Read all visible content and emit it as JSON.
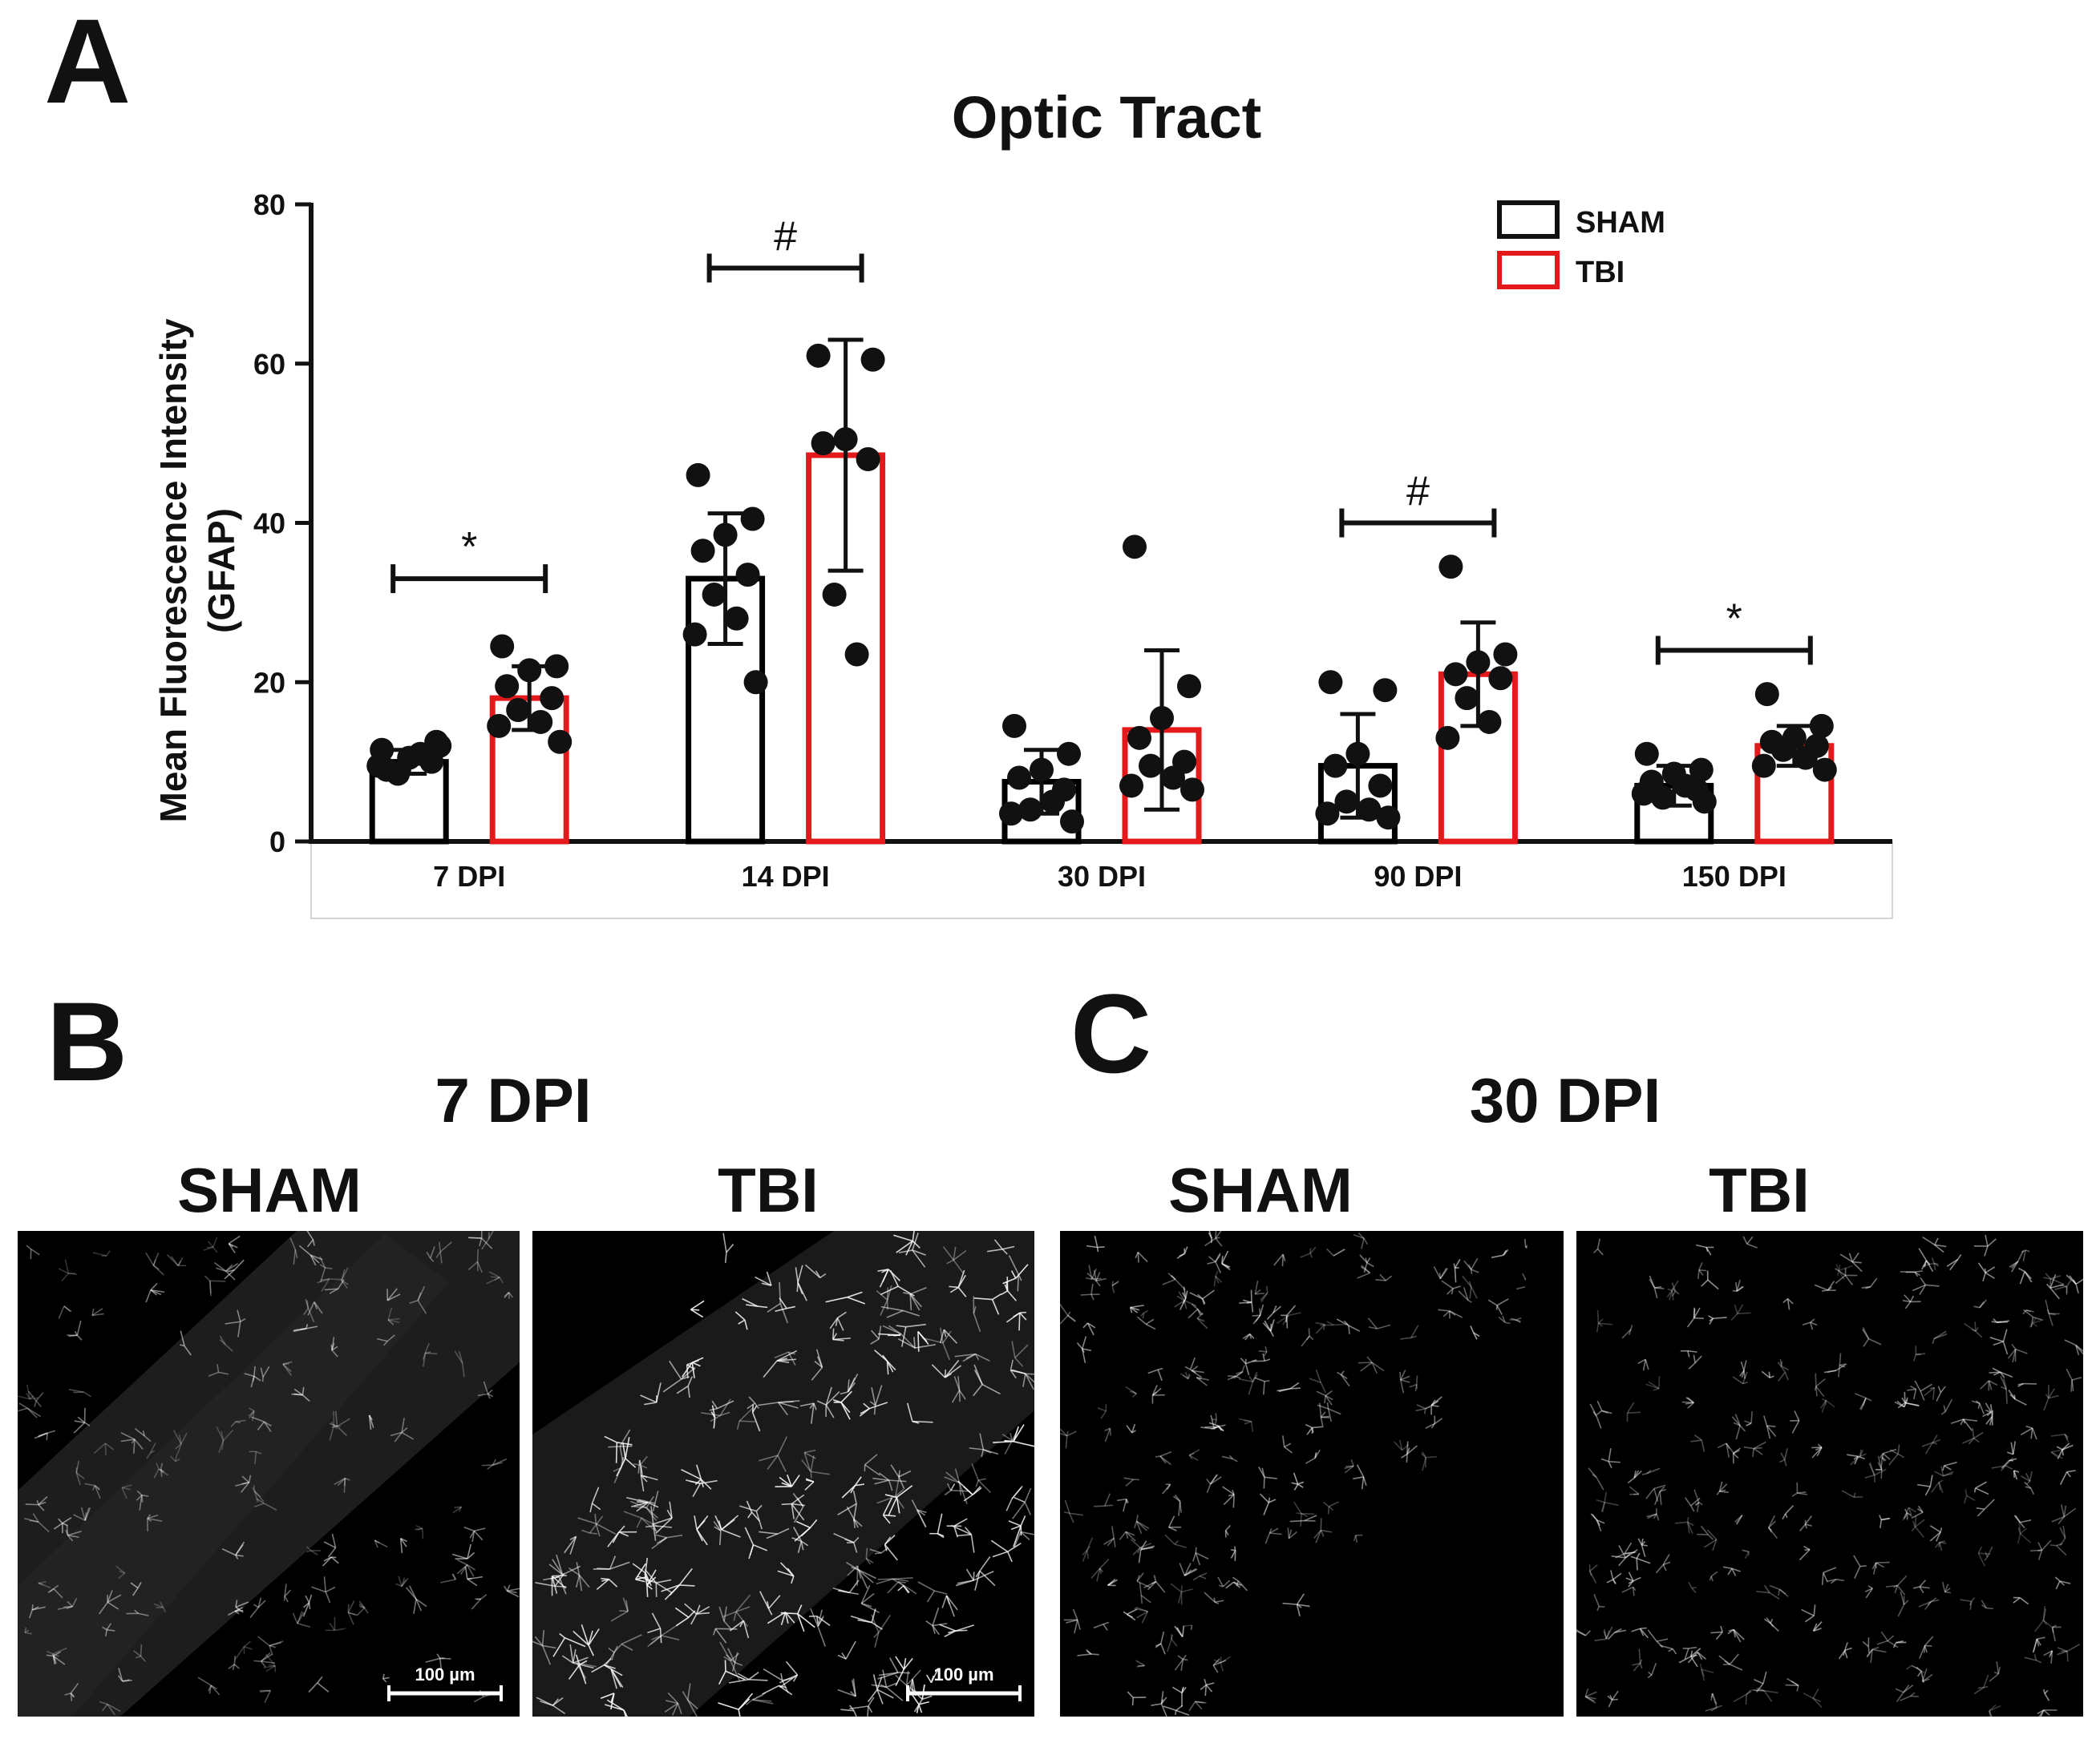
{
  "panels": {
    "a_label": "A",
    "b_label": "B",
    "c_label": "C",
    "b_title": "7 DPI",
    "c_title": "30 DPI",
    "b_left_label": "SHAM",
    "b_right_label": "TBI",
    "c_left_label": "SHAM",
    "c_right_label": "TBI",
    "scale_bar_label": "100 µm"
  },
  "chart_data": {
    "type": "bar",
    "title": "Optic Tract",
    "ylabel_line1": "Mean Fluorescence Intensity",
    "ylabel_line2": "(GFAP)",
    "xlabel": "",
    "ylim": [
      0,
      80
    ],
    "yticks": [
      0,
      20,
      40,
      60,
      80
    ],
    "categories": [
      "7 DPI",
      "14 DPI",
      "30 DPI",
      "90 DPI",
      "150 DPI"
    ],
    "legend": {
      "placement": "top-right"
    },
    "series": [
      {
        "name": "SHAM",
        "color": "#000000",
        "values": [
          10,
          33,
          7.5,
          9.5,
          7
        ],
        "sd": [
          1.5,
          8.2,
          4,
          6.5,
          2.5
        ],
        "points": [
          [
            11.5,
            12.5,
            10.5,
            9,
            10,
            8.5,
            11,
            9.5,
            12
          ],
          [
            46,
            40.5,
            38.5,
            36.5,
            33.5,
            31,
            28,
            26,
            20
          ],
          [
            14.5,
            11,
            9,
            8,
            6.5,
            4,
            5,
            3.5,
            2.5
          ],
          [
            20,
            19,
            11,
            9.5,
            7,
            5,
            4,
            3.5,
            3
          ],
          [
            11,
            9,
            8.5,
            7.5,
            6.5,
            5.5,
            7,
            6,
            5
          ]
        ]
      },
      {
        "name": "TBI",
        "color": "#e3191c",
        "values": [
          18,
          48.5,
          14,
          21,
          12
        ],
        "sd": [
          4,
          14.5,
          10,
          6.5,
          2.5
        ],
        "points": [
          [
            24.5,
            22,
            21.5,
            19.5,
            18,
            16.5,
            15,
            14.5,
            12.5
          ],
          [
            61,
            60.5,
            50.5,
            50,
            48,
            31,
            23.5
          ],
          [
            37,
            19.5,
            15.5,
            13,
            10,
            9.5,
            8,
            7,
            6.5
          ],
          [
            34.5,
            23.5,
            22.5,
            21,
            20.5,
            18,
            15,
            13
          ],
          [
            18.5,
            14.5,
            13,
            12.5,
            12,
            11.5,
            10.5,
            9.5,
            9
          ]
        ]
      }
    ],
    "annotations": [
      {
        "category_index": 0,
        "symbol": "*",
        "y": 33
      },
      {
        "category_index": 1,
        "symbol": "#",
        "y": 72
      },
      {
        "category_index": 3,
        "symbol": "#",
        "y": 40
      },
      {
        "category_index": 4,
        "symbol": "*",
        "y": 24
      }
    ]
  }
}
